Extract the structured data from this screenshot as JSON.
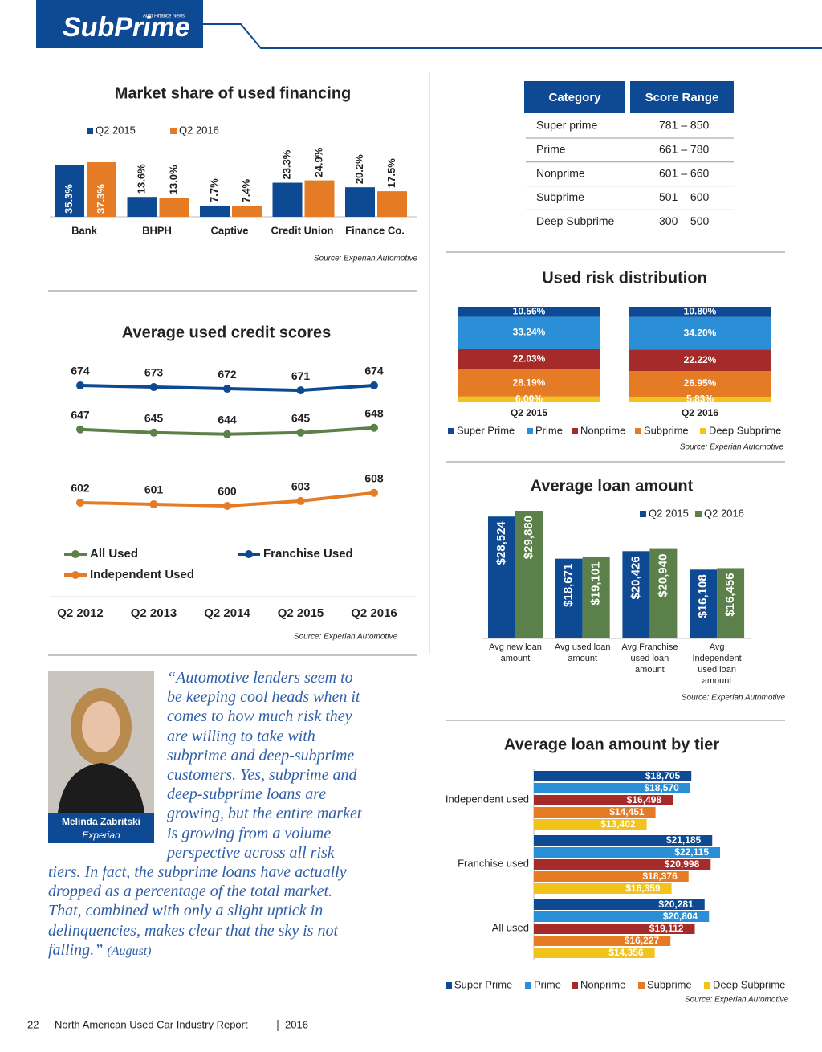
{
  "header": {
    "logo": "SubPrime",
    "tagline": "Auto Finance News"
  },
  "chart_data": [
    {
      "type": "bar",
      "title": "Market share of used financing",
      "source": "Source: Experian Automotive",
      "categories": [
        "Bank",
        "BHPH",
        "Captive",
        "Credit Union",
        "Finance Co."
      ],
      "series": [
        {
          "name": "Q2 2015",
          "color": "#0d4a93",
          "values": [
            35.3,
            13.6,
            7.7,
            23.3,
            20.2
          ],
          "value_labels": [
            "35.3%",
            "13.6%",
            "7.7%",
            "23.3%",
            "20.2%"
          ]
        },
        {
          "name": "Q2 2016",
          "color": "#e57c25",
          "values": [
            37.3,
            13.0,
            7.4,
            24.9,
            17.5
          ],
          "value_labels": [
            "37.3%",
            "13.0%",
            "7.4%",
            "24.9%",
            "17.5%"
          ]
        }
      ]
    },
    {
      "type": "line",
      "title": "Average used credit scores",
      "source": "Source: Experian Automotive",
      "categories": [
        "Q2 2012",
        "Q2 2013",
        "Q2 2014",
        "Q2 2015",
        "Q2 2016"
      ],
      "series": [
        {
          "name": "All Used",
          "color": "#5b8049",
          "values": [
            647,
            645,
            644,
            645,
            648
          ]
        },
        {
          "name": "Franchise Used",
          "color": "#0d4a93",
          "values": [
            674,
            673,
            672,
            671,
            674
          ]
        },
        {
          "name": "Independent Used",
          "color": "#e57c25",
          "values": [
            602,
            601,
            600,
            603,
            608
          ]
        }
      ]
    },
    {
      "type": "stacked_bar",
      "title": "Used risk distribution",
      "source": "Source: Experian Automotive",
      "categories": [
        "Q2 2015",
        "Q2 2016"
      ],
      "series": [
        {
          "name": "Super Prime",
          "color": "#0d4a93",
          "values": [
            10.56,
            10.8
          ],
          "value_labels": [
            "10.56%",
            "10.80%"
          ]
        },
        {
          "name": "Prime",
          "color": "#2b8fd8",
          "values": [
            33.24,
            34.2
          ],
          "value_labels": [
            "33.24%",
            "34.20%"
          ]
        },
        {
          "name": "Nonprime",
          "color": "#a52a2a",
          "values": [
            22.03,
            22.22
          ],
          "value_labels": [
            "22.03%",
            "22.22%"
          ]
        },
        {
          "name": "Subprime",
          "color": "#e57c25",
          "values": [
            28.19,
            26.95
          ],
          "value_labels": [
            "28.19%",
            "26.95%"
          ]
        },
        {
          "name": "Deep Subprime",
          "color": "#f2c31b",
          "values": [
            6.0,
            5.83
          ],
          "value_labels": [
            "6.00%",
            "5.83%"
          ]
        }
      ]
    },
    {
      "type": "bar",
      "title": "Average loan amount",
      "source": "Source: Experian Automotive",
      "categories": [
        "Avg new loan amount",
        "Avg used loan amount",
        "Avg Franchise used loan amount",
        "Avg Independent used loan amount"
      ],
      "series": [
        {
          "name": "Q2 2015",
          "color": "#0d4a93",
          "values": [
            28524,
            18671,
            20426,
            16108
          ],
          "value_labels": [
            "$28,524",
            "$18,671",
            "$20,426",
            "$16,108"
          ]
        },
        {
          "name": "Q2 2016",
          "color": "#5b8049",
          "values": [
            29880,
            19101,
            20940,
            16456
          ],
          "value_labels": [
            "$29,880",
            "$19,101",
            "$20,940",
            "$16,456"
          ]
        }
      ]
    },
    {
      "type": "barh",
      "title": "Average loan amount by tier",
      "source": "Source: Experian Automotive",
      "categories": [
        "Independent used",
        "Franchise used",
        "All used"
      ],
      "series": [
        {
          "name": "Super Prime",
          "color": "#0d4a93",
          "values": [
            18705,
            21185,
            20281
          ],
          "value_labels": [
            "$18,705",
            "$21,185",
            "$20,281"
          ]
        },
        {
          "name": "Prime",
          "color": "#2b8fd8",
          "values": [
            18570,
            22115,
            20804
          ],
          "value_labels": [
            "$18,570",
            "$22,115",
            "$20,804"
          ]
        },
        {
          "name": "Nonprime",
          "color": "#a52a2a",
          "values": [
            16498,
            20998,
            19112
          ],
          "value_labels": [
            "$16,498",
            "$20,998",
            "$19,112"
          ]
        },
        {
          "name": "Subprime",
          "color": "#e57c25",
          "values": [
            14451,
            18376,
            16227
          ],
          "value_labels": [
            "$14,451",
            "$18,376",
            "$16,227"
          ]
        },
        {
          "name": "Deep Subprime",
          "color": "#f2c31b",
          "values": [
            13402,
            16359,
            14356
          ],
          "value_labels": [
            "$13,402",
            "$16,359",
            "$14,356"
          ]
        }
      ]
    }
  ],
  "score_table": {
    "columns": [
      "Category",
      "Score Range"
    ],
    "rows": [
      [
        "Super prime",
        "781 – 850"
      ],
      [
        "Prime",
        "661 – 780"
      ],
      [
        "Nonprime",
        "601 – 660"
      ],
      [
        "Subprime",
        "501 – 600"
      ],
      [
        "Deep Subprime",
        "300 – 500"
      ]
    ]
  },
  "quote": {
    "text": "“Automotive lenders seem to be keeping cool heads when it comes to how much risk they are willing to take with subprime and deep-subprime customers. Yes, subprime and deep-subprime loans are growing, but the entire market is growing from a volume perspective across all risk tiers. In fact, the subprime loans have actually dropped as a percentage of the total market. That, combined with only a slight uptick in delinquencies, makes clear that the sky is not falling.”",
    "date": "(August)",
    "name": "Melinda Zabritski",
    "affiliation": "Experian"
  },
  "footer": {
    "page": "22",
    "title": "North American Used Car Industry Report",
    "year": "2016"
  }
}
